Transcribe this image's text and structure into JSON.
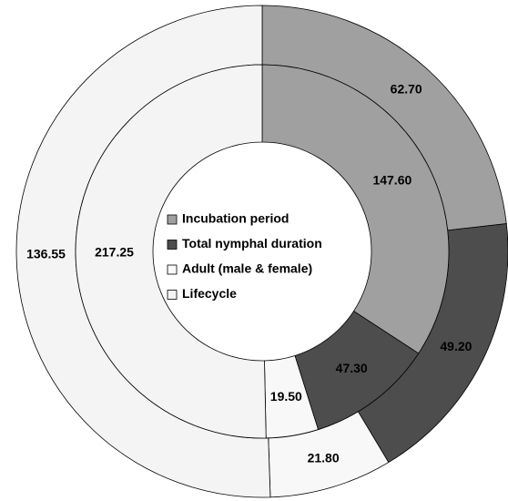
{
  "chart_data": {
    "type": "donut",
    "categories": [
      "Incubation period",
      "Total nymphal duration",
      "Adult (male & female)",
      "Lifecycle"
    ],
    "colors": [
      "#a0a0a0",
      "#4d4d4d",
      "#f8f8f8",
      "#f4f4f4"
    ],
    "series": [
      {
        "values": [
          62.7,
          49.2,
          21.8,
          136.55
        ],
        "value_labels": [
          "62.70",
          "49.20",
          "21.80",
          "136.55"
        ]
      },
      {
        "values": [
          147.6,
          47.3,
          19.5,
          217.25
        ],
        "value_labels": [
          "147.60",
          "47.30",
          "19.50",
          "217.25"
        ]
      }
    ]
  }
}
